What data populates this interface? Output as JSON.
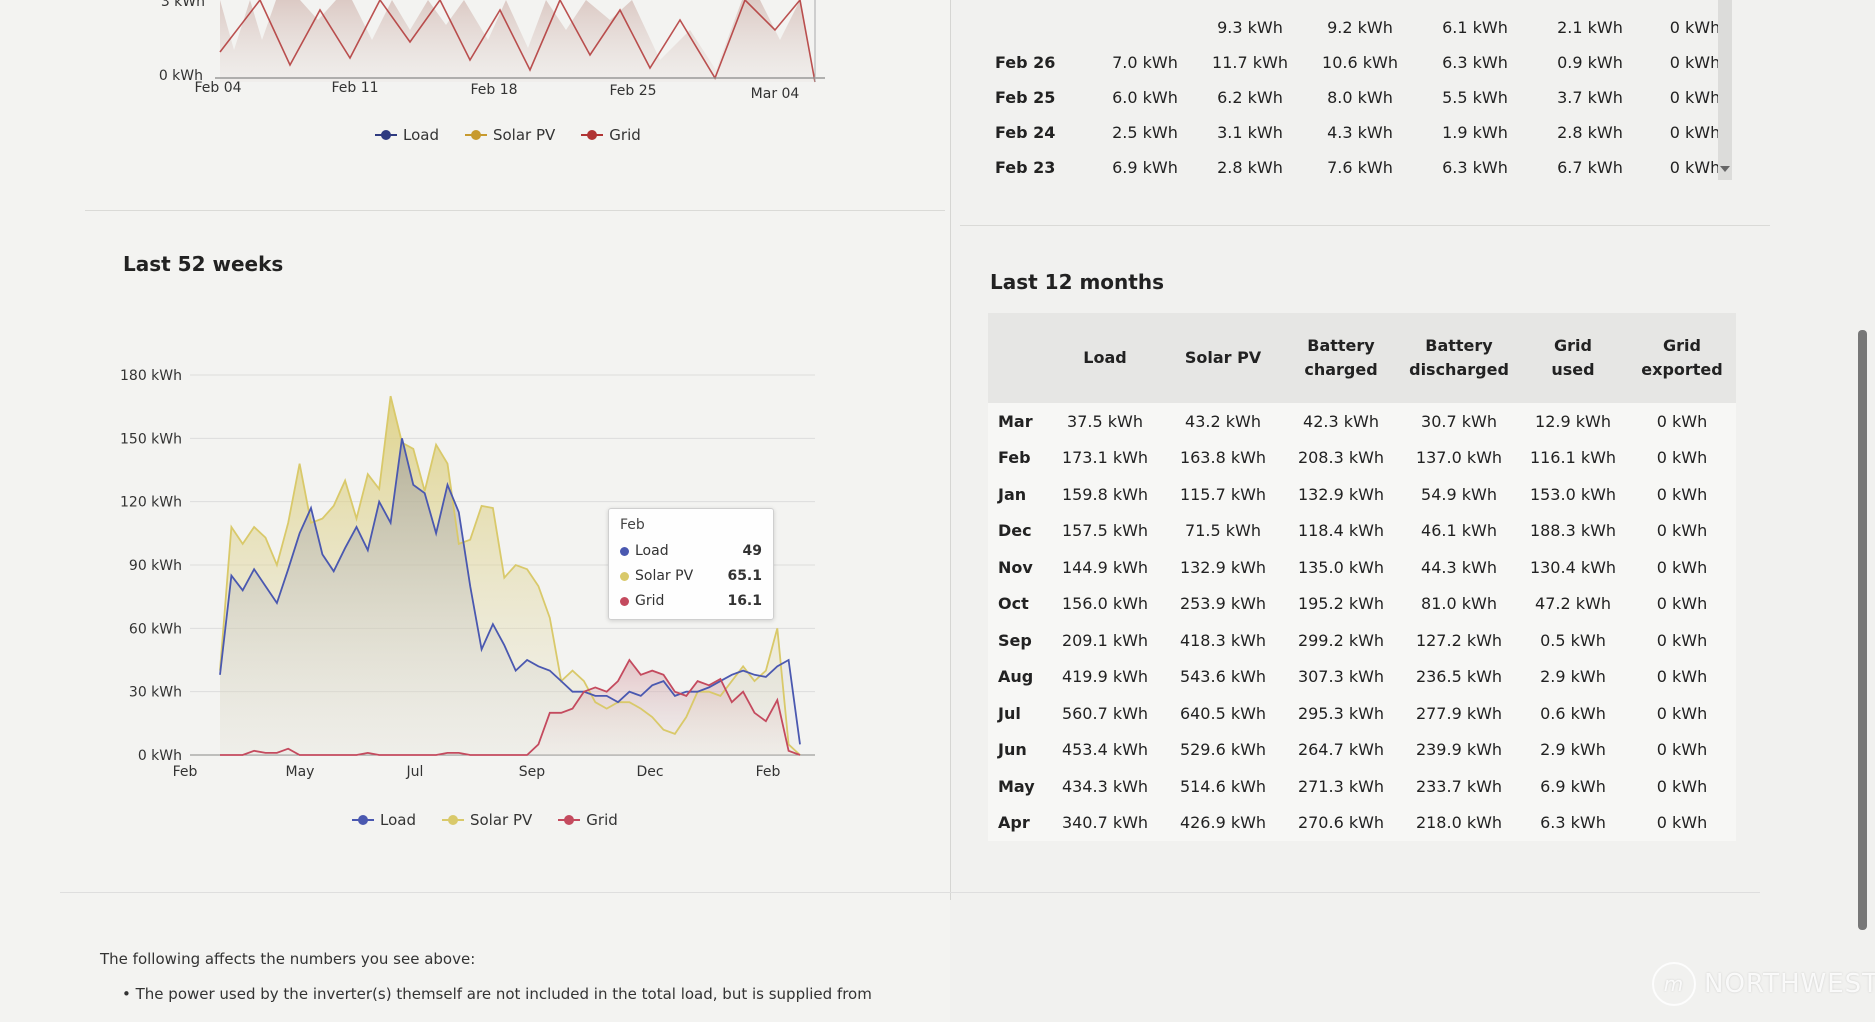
{
  "top_chart": {
    "y_tick": "0 kWh",
    "y_tick_top": "3 kWh",
    "x_ticks": [
      "Feb 04",
      "Feb 11",
      "Feb 18",
      "Feb 25",
      "Mar 04"
    ],
    "legend": [
      "Load",
      "Solar PV",
      "Grid"
    ]
  },
  "weeks_section": {
    "title": "Last 52 weeks",
    "tooltip": {
      "title": "Feb",
      "rows": [
        {
          "name": "Load",
          "value": "49"
        },
        {
          "name": "Solar PV",
          "value": "65.1"
        },
        {
          "name": "Grid",
          "value": "16.1"
        }
      ]
    },
    "legend": [
      "Load",
      "Solar PV",
      "Grid"
    ]
  },
  "chart_data": {
    "type": "area",
    "title": "Last 52 weeks",
    "y_ticks": [
      "0 kWh",
      "30 kWh",
      "60 kWh",
      "90 kWh",
      "120 kWh",
      "150 kWh",
      "180 kWh"
    ],
    "x_ticks": [
      "Feb",
      "May",
      "Jul",
      "Sep",
      "Dec",
      "Feb"
    ],
    "ylim": [
      0,
      180
    ],
    "grid": true,
    "legend_position": "bottom",
    "series": [
      {
        "name": "Load",
        "color": "#4a58b0",
        "values": [
          38,
          85,
          78,
          88,
          80,
          72,
          88,
          105,
          117,
          95,
          87,
          98,
          108,
          97,
          120,
          110,
          150,
          128,
          124,
          105,
          128,
          115,
          80,
          50,
          62,
          52,
          40,
          45,
          42,
          40,
          35,
          30,
          30,
          28,
          28,
          25,
          30,
          28,
          33,
          35,
          28,
          30,
          30,
          32,
          35,
          38,
          40,
          38,
          37,
          42,
          45,
          5
        ]
      },
      {
        "name": "Solar PV",
        "color": "#d9c96a",
        "values": [
          40,
          108,
          100,
          108,
          103,
          90,
          110,
          138,
          110,
          112,
          118,
          130,
          112,
          133,
          126,
          170,
          148,
          145,
          125,
          147,
          138,
          100,
          102,
          118,
          117,
          84,
          90,
          88,
          80,
          65,
          35,
          40,
          35,
          25,
          22,
          25,
          25,
          22,
          18,
          12,
          10,
          18,
          30,
          30,
          28,
          35,
          42,
          35,
          40,
          60,
          5,
          0
        ]
      },
      {
        "name": "Grid",
        "color": "#c44a5e",
        "values": [
          0,
          0,
          0,
          2,
          1,
          1,
          3,
          0,
          0,
          0,
          0,
          0,
          0,
          1,
          0,
          0,
          0,
          0,
          0,
          0,
          1,
          1,
          0,
          0,
          0,
          0,
          0,
          0,
          5,
          20,
          20,
          22,
          30,
          32,
          30,
          35,
          45,
          38,
          40,
          38,
          30,
          28,
          35,
          33,
          36,
          25,
          30,
          20,
          16,
          26,
          2,
          0
        ]
      }
    ]
  },
  "daily_table": {
    "rows": [
      {
        "date": "",
        "cells": [
          "",
          "9.3 kWh",
          "9.2 kWh",
          "6.1 kWh",
          "2.1 kWh",
          "0 kWh"
        ]
      },
      {
        "date": "Feb 26",
        "cells": [
          "7.0 kWh",
          "11.7 kWh",
          "10.6 kWh",
          "6.3 kWh",
          "0.9 kWh",
          "0 kWh"
        ]
      },
      {
        "date": "Feb 25",
        "cells": [
          "6.0 kWh",
          "6.2 kWh",
          "8.0 kWh",
          "5.5 kWh",
          "3.7 kWh",
          "0 kWh"
        ]
      },
      {
        "date": "Feb 24",
        "cells": [
          "2.5 kWh",
          "3.1 kWh",
          "4.3 kWh",
          "1.9 kWh",
          "2.8 kWh",
          "0 kWh"
        ]
      },
      {
        "date": "Feb 23",
        "cells": [
          "6.9 kWh",
          "2.8 kWh",
          "7.6 kWh",
          "6.3 kWh",
          "6.7 kWh",
          "0 kWh"
        ]
      }
    ]
  },
  "months_section": {
    "title": "Last 12 months",
    "headers": [
      {
        "l1": "Load",
        "l2": ""
      },
      {
        "l1": "Solar PV",
        "l2": ""
      },
      {
        "l1": "Battery",
        "l2": "charged"
      },
      {
        "l1": "Battery",
        "l2": "discharged"
      },
      {
        "l1": "Grid",
        "l2": "used"
      },
      {
        "l1": "Grid",
        "l2": "exported"
      }
    ],
    "rows": [
      {
        "month": "Mar",
        "cells": [
          "37.5 kWh",
          "43.2 kWh",
          "42.3 kWh",
          "30.7 kWh",
          "12.9 kWh",
          "0 kWh"
        ]
      },
      {
        "month": "Feb",
        "cells": [
          "173.1 kWh",
          "163.8 kWh",
          "208.3 kWh",
          "137.0 kWh",
          "116.1 kWh",
          "0 kWh"
        ]
      },
      {
        "month": "Jan",
        "cells": [
          "159.8 kWh",
          "115.7 kWh",
          "132.9 kWh",
          "54.9 kWh",
          "153.0 kWh",
          "0 kWh"
        ]
      },
      {
        "month": "Dec",
        "cells": [
          "157.5 kWh",
          "71.5 kWh",
          "118.4 kWh",
          "46.1 kWh",
          "188.3 kWh",
          "0 kWh"
        ]
      },
      {
        "month": "Nov",
        "cells": [
          "144.9 kWh",
          "132.9 kWh",
          "135.0 kWh",
          "44.3 kWh",
          "130.4 kWh",
          "0 kWh"
        ]
      },
      {
        "month": "Oct",
        "cells": [
          "156.0 kWh",
          "253.9 kWh",
          "195.2 kWh",
          "81.0 kWh",
          "47.2 kWh",
          "0 kWh"
        ]
      },
      {
        "month": "Sep",
        "cells": [
          "209.1 kWh",
          "418.3 kWh",
          "299.2 kWh",
          "127.2 kWh",
          "0.5 kWh",
          "0 kWh"
        ]
      },
      {
        "month": "Aug",
        "cells": [
          "419.9 kWh",
          "543.6 kWh",
          "307.3 kWh",
          "236.5 kWh",
          "2.9 kWh",
          "0 kWh"
        ]
      },
      {
        "month": "Jul",
        "cells": [
          "560.7 kWh",
          "640.5 kWh",
          "295.3 kWh",
          "277.9 kWh",
          "0.6 kWh",
          "0 kWh"
        ]
      },
      {
        "month": "Jun",
        "cells": [
          "453.4 kWh",
          "529.6 kWh",
          "264.7 kWh",
          "239.9 kWh",
          "2.9 kWh",
          "0 kWh"
        ]
      },
      {
        "month": "May",
        "cells": [
          "434.3 kWh",
          "514.6 kWh",
          "271.3 kWh",
          "233.7 kWh",
          "6.9 kWh",
          "0 kWh"
        ]
      },
      {
        "month": "Apr",
        "cells": [
          "340.7 kWh",
          "426.9 kWh",
          "270.6 kWh",
          "218.0 kWh",
          "6.3 kWh",
          "0 kWh"
        ]
      }
    ]
  },
  "footer": {
    "intro": "The following affects the numbers you see above:",
    "bullet": "The power used by the inverter(s) themself are not included in the total load, but is supplied from"
  },
  "watermark": {
    "text": "NORTHWEST"
  },
  "colors": {
    "load": "#4a58b0",
    "solar": "#d9c96a",
    "grid": "#c44a5e",
    "top_load": "#2e3a80",
    "top_solar": "#c79a2e",
    "top_grid": "#b03434"
  }
}
